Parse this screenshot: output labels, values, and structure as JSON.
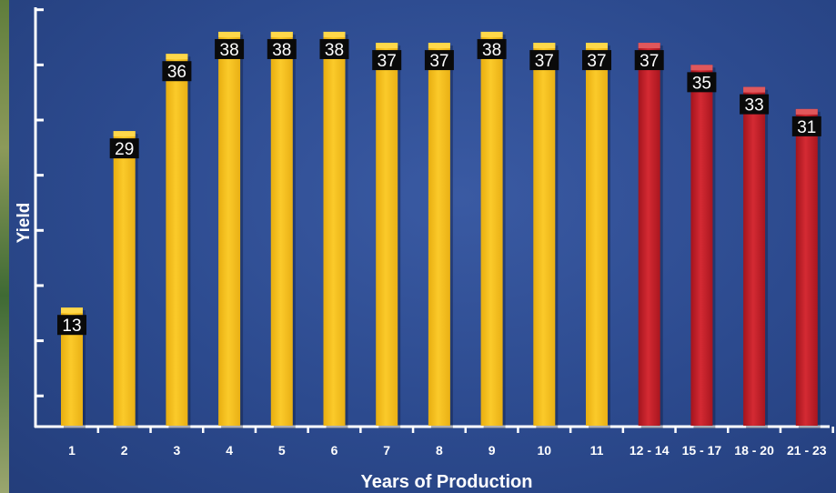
{
  "chart_data": {
    "type": "bar",
    "xlabel": "Years of Production",
    "ylabel": "Yield",
    "ylim": [
      0,
      40
    ],
    "grid": false,
    "categories": [
      "1",
      "2",
      "3",
      "4",
      "5",
      "6",
      "7",
      "8",
      "9",
      "10",
      "11",
      "12 - 14",
      "15 - 17",
      "18 - 20",
      "21 - 23"
    ],
    "values": [
      13,
      29,
      36,
      38,
      38,
      38,
      37,
      37,
      38,
      37,
      37,
      37,
      35,
      33,
      31
    ],
    "colors": [
      "#f6c31f",
      "#f6c31f",
      "#f6c31f",
      "#f6c31f",
      "#f6c31f",
      "#f6c31f",
      "#f6c31f",
      "#f6c31f",
      "#f6c31f",
      "#f6c31f",
      "#f6c31f",
      "#c8222b",
      "#c8222b",
      "#c8222b",
      "#c8222b"
    ]
  }
}
